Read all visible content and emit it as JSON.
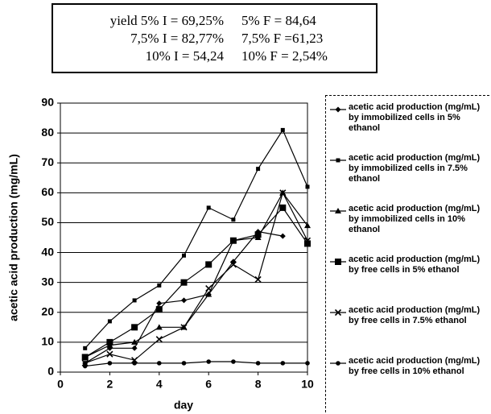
{
  "chart_data": {
    "type": "line",
    "annotations": [
      "yield 5% I = 69,25%",
      "5% F = 84,64",
      "7,5% I = 82,77%",
      "7,5% F =61,23",
      "10% I = 54,24",
      "10% F = 2,54%"
    ],
    "x_label": "day",
    "y_label": "acetic acid production (mg/mL)",
    "x": [
      1,
      2,
      3,
      4,
      5,
      6,
      7,
      8,
      9,
      10
    ],
    "xlim": [
      0,
      10
    ],
    "xticks": [
      0,
      2,
      4,
      6,
      8,
      10
    ],
    "ylim": [
      0,
      90
    ],
    "yticks": [
      0,
      10,
      20,
      30,
      40,
      50,
      60,
      70,
      80,
      90
    ],
    "grid": true,
    "legend": "right",
    "series": [
      {
        "name": "acetic acid production (mg/mL) by immobilized cells in 5% ethanol",
        "color": "#000000",
        "marker": "diamond",
        "values": [
          3,
          8,
          8,
          23,
          24,
          26,
          37,
          47,
          45.5,
          null
        ]
      },
      {
        "name": "acetic acid production (mg/mL) by immobilized cells in 7.5% ethanol",
        "color": "#000000",
        "marker": "square",
        "values": [
          8,
          17,
          24,
          29,
          39,
          55,
          51,
          68,
          81,
          62
        ]
      },
      {
        "name": "acetic acid production (mg/mL) by immobilized cells in 10% ethanol",
        "color": "#000000",
        "marker": "triangle",
        "values": [
          5,
          9,
          10,
          15,
          15,
          26,
          44,
          45,
          60,
          49
        ]
      },
      {
        "name": "acetic acid production (mg/mL) by free cells in 5% ethanol",
        "color": "#000000",
        "marker": "bigsquare",
        "values": [
          5,
          10,
          15,
          21,
          30,
          36,
          44,
          46,
          55,
          43
        ]
      },
      {
        "name": "acetic acid production (mg/mL) by free cells in 7.5% ethanol",
        "color": "#000000",
        "marker": "x",
        "values": [
          3,
          6,
          4,
          11,
          15,
          28,
          36,
          31,
          60,
          44
        ]
      },
      {
        "name": "acetic acid production (mg/mL) by free cells in 10% ethanol",
        "color": "#000000",
        "marker": "circle",
        "values": [
          2,
          3,
          3,
          3,
          3,
          3.5,
          3.5,
          3,
          3,
          3
        ]
      }
    ]
  }
}
